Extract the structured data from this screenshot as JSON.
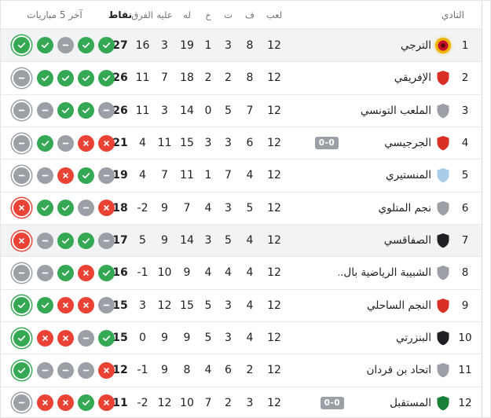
{
  "table": {
    "headers": {
      "club": "النادي",
      "played": "لعب",
      "won": "ف",
      "drawn": "ت",
      "lost": "خ",
      "gf": "له",
      "ga": "عليه",
      "gd": "الفرق",
      "points": "نقاط",
      "last5": "آخر 5 مباريات"
    },
    "form_glyphs": {
      "W": "check",
      "D": "minus",
      "L": "cross"
    },
    "colors": {
      "win": "#34a853",
      "draw": "#9aa0a6",
      "loss": "#ea4335",
      "row_highlight": "#f1f3f4",
      "live_badge_bg": "#9aa0a6",
      "header_text": "#70757a",
      "separator": "#e8eaed"
    },
    "rows": [
      {
        "rank": "1",
        "club": "الترجي",
        "badge_type": "circle",
        "badge_color": "#f2b705",
        "played": "12",
        "won": "8",
        "drawn": "3",
        "lost": "1",
        "gf": "19",
        "ga": "3",
        "gd": "16",
        "points": "27",
        "live_score": "",
        "highlighted": true,
        "form": [
          "W",
          "W",
          "D",
          "W",
          "W"
        ]
      },
      {
        "rank": "2",
        "club": "الإفريقي",
        "badge_type": "shield",
        "badge_color": "#d93025",
        "played": "12",
        "won": "8",
        "drawn": "2",
        "lost": "2",
        "gf": "18",
        "ga": "7",
        "gd": "11",
        "points": "26",
        "live_score": "",
        "highlighted": false,
        "form": [
          "D",
          "W",
          "W",
          "W",
          "W"
        ]
      },
      {
        "rank": "3",
        "club": "الملعب التونسي",
        "badge_type": "shield",
        "badge_color": "#9aa0a6",
        "played": "12",
        "won": "7",
        "drawn": "5",
        "lost": "0",
        "gf": "14",
        "ga": "3",
        "gd": "11",
        "points": "26",
        "live_score": "",
        "highlighted": false,
        "form": [
          "D",
          "D",
          "W",
          "W",
          "D"
        ]
      },
      {
        "rank": "4",
        "club": "الجرجيسي",
        "badge_type": "shield",
        "badge_color": "#d93025",
        "played": "12",
        "won": "6",
        "drawn": "3",
        "lost": "3",
        "gf": "15",
        "ga": "11",
        "gd": "4",
        "points": "21",
        "live_score": "0-0",
        "highlighted": false,
        "form": [
          "D",
          "W",
          "D",
          "L",
          "L"
        ]
      },
      {
        "rank": "5",
        "club": "المنستيري",
        "badge_type": "shield",
        "badge_color": "#a8cdea",
        "played": "12",
        "won": "4",
        "drawn": "7",
        "lost": "1",
        "gf": "11",
        "ga": "7",
        "gd": "4",
        "points": "19",
        "live_score": "",
        "highlighted": false,
        "form": [
          "D",
          "D",
          "L",
          "W",
          "D"
        ]
      },
      {
        "rank": "6",
        "club": "نجم المتلوي",
        "badge_type": "shield",
        "badge_color": "#9aa0a6",
        "played": "12",
        "won": "5",
        "drawn": "3",
        "lost": "4",
        "gf": "7",
        "ga": "9",
        "gd": "-2",
        "points": "18",
        "live_score": "",
        "highlighted": false,
        "form": [
          "L",
          "W",
          "W",
          "D",
          "L"
        ]
      },
      {
        "rank": "7",
        "club": "الصفاقسي",
        "badge_type": "shield",
        "badge_color": "#202124",
        "played": "12",
        "won": "4",
        "drawn": "5",
        "lost": "3",
        "gf": "14",
        "ga": "9",
        "gd": "5",
        "points": "17",
        "live_score": "",
        "highlighted": true,
        "form": [
          "L",
          "D",
          "W",
          "W",
          "D"
        ]
      },
      {
        "rank": "8",
        "club": "الشبيبة الرياضية بال...",
        "badge_type": "shield",
        "badge_color": "#9aa0a6",
        "played": "12",
        "won": "4",
        "drawn": "4",
        "lost": "4",
        "gf": "9",
        "ga": "10",
        "gd": "-1",
        "points": "16",
        "live_score": "",
        "highlighted": false,
        "form": [
          "D",
          "D",
          "W",
          "L",
          "W"
        ]
      },
      {
        "rank": "9",
        "club": "النجم الساحلي",
        "badge_type": "shield",
        "badge_color": "#d93025",
        "played": "12",
        "won": "4",
        "drawn": "3",
        "lost": "5",
        "gf": "15",
        "ga": "12",
        "gd": "3",
        "points": "15",
        "live_score": "",
        "highlighted": false,
        "form": [
          "W",
          "W",
          "L",
          "L",
          "D"
        ]
      },
      {
        "rank": "10",
        "club": "البنزرتي",
        "badge_type": "shield",
        "badge_color": "#202124",
        "played": "12",
        "won": "4",
        "drawn": "3",
        "lost": "5",
        "gf": "9",
        "ga": "9",
        "gd": "0",
        "points": "15",
        "live_score": "",
        "highlighted": false,
        "form": [
          "W",
          "L",
          "L",
          "D",
          "W"
        ]
      },
      {
        "rank": "11",
        "club": "اتحاد بن قردان",
        "badge_type": "shield",
        "badge_color": "#9aa0a6",
        "played": "12",
        "won": "2",
        "drawn": "6",
        "lost": "4",
        "gf": "8",
        "ga": "9",
        "gd": "-1",
        "points": "12",
        "live_score": "",
        "highlighted": false,
        "form": [
          "W",
          "D",
          "D",
          "D",
          "L"
        ]
      },
      {
        "rank": "12",
        "club": "المستقبل",
        "badge_type": "shield",
        "badge_color": "#188038",
        "played": "12",
        "won": "3",
        "drawn": "2",
        "lost": "7",
        "gf": "10",
        "ga": "12",
        "gd": "-2",
        "points": "11",
        "live_score": "0-0",
        "highlighted": false,
        "form": [
          "D",
          "L",
          "L",
          "W",
          "L"
        ]
      }
    ]
  }
}
